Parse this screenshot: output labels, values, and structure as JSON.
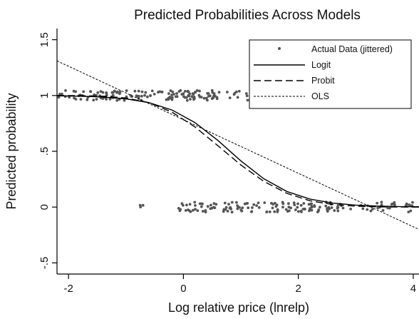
{
  "chart_data": {
    "type": "scatter",
    "title": "Predicted Probabilities Across Models",
    "xlabel": "Log relative price (lnrelp)",
    "ylabel": "Predicted probability",
    "xlim": [
      -2.2,
      4.1
    ],
    "ylim": [
      -0.6,
      1.6
    ],
    "x_ticks": [
      -2,
      0,
      2,
      4
    ],
    "x_tick_labels": [
      "-2",
      "0",
      "2",
      "4"
    ],
    "y_ticks": [
      -0.5,
      0,
      0.5,
      1,
      1.5
    ],
    "y_tick_labels": [
      "-.5",
      "0",
      ".5",
      "1",
      "1.5"
    ],
    "grid": false,
    "legend_position": "top-right",
    "series": [
      {
        "name": "Actual Data (jittered)",
        "kind": "points",
        "color": "#555555",
        "clusters": [
          {
            "y": 1,
            "x_range": [
              -2.2,
              1.2
            ],
            "count": 150
          },
          {
            "y": 0,
            "x_range": [
              -0.8,
              -0.7
            ],
            "count": 3
          },
          {
            "y": 0,
            "x_range": [
              -0.1,
              2.8
            ],
            "count": 130
          },
          {
            "y": 0,
            "x_range": [
              2.9,
              4.0
            ],
            "count": 28
          }
        ]
      },
      {
        "name": "Logit",
        "kind": "line",
        "dash": "solid",
        "x": [
          -2.2,
          -1.8,
          -1.4,
          -1.0,
          -0.6,
          -0.2,
          0.2,
          0.6,
          1.0,
          1.4,
          1.8,
          2.2,
          2.6,
          3.0,
          3.4,
          3.8,
          4.1
        ],
        "y": [
          0.997,
          0.994,
          0.986,
          0.97,
          0.936,
          0.87,
          0.758,
          0.597,
          0.414,
          0.254,
          0.14,
          0.072,
          0.036,
          0.018,
          0.009,
          0.004,
          0.003
        ]
      },
      {
        "name": "Probit",
        "kind": "line",
        "dash": "long-dash",
        "x": [
          -2.2,
          -1.8,
          -1.4,
          -1.0,
          -0.6,
          -0.2,
          0.2,
          0.6,
          1.0,
          1.4,
          1.8,
          2.2,
          2.6,
          3.0,
          3.4,
          3.8,
          4.1
        ],
        "y": [
          1.0,
          0.999,
          0.994,
          0.978,
          0.936,
          0.851,
          0.719,
          0.55,
          0.377,
          0.23,
          0.123,
          0.057,
          0.023,
          0.008,
          0.002,
          0.0006,
          0.0002
        ]
      },
      {
        "name": "OLS",
        "kind": "line",
        "dash": "short-dash",
        "x": [
          -2.2,
          4.1
        ],
        "y": [
          1.31,
          -0.2
        ]
      }
    ]
  }
}
